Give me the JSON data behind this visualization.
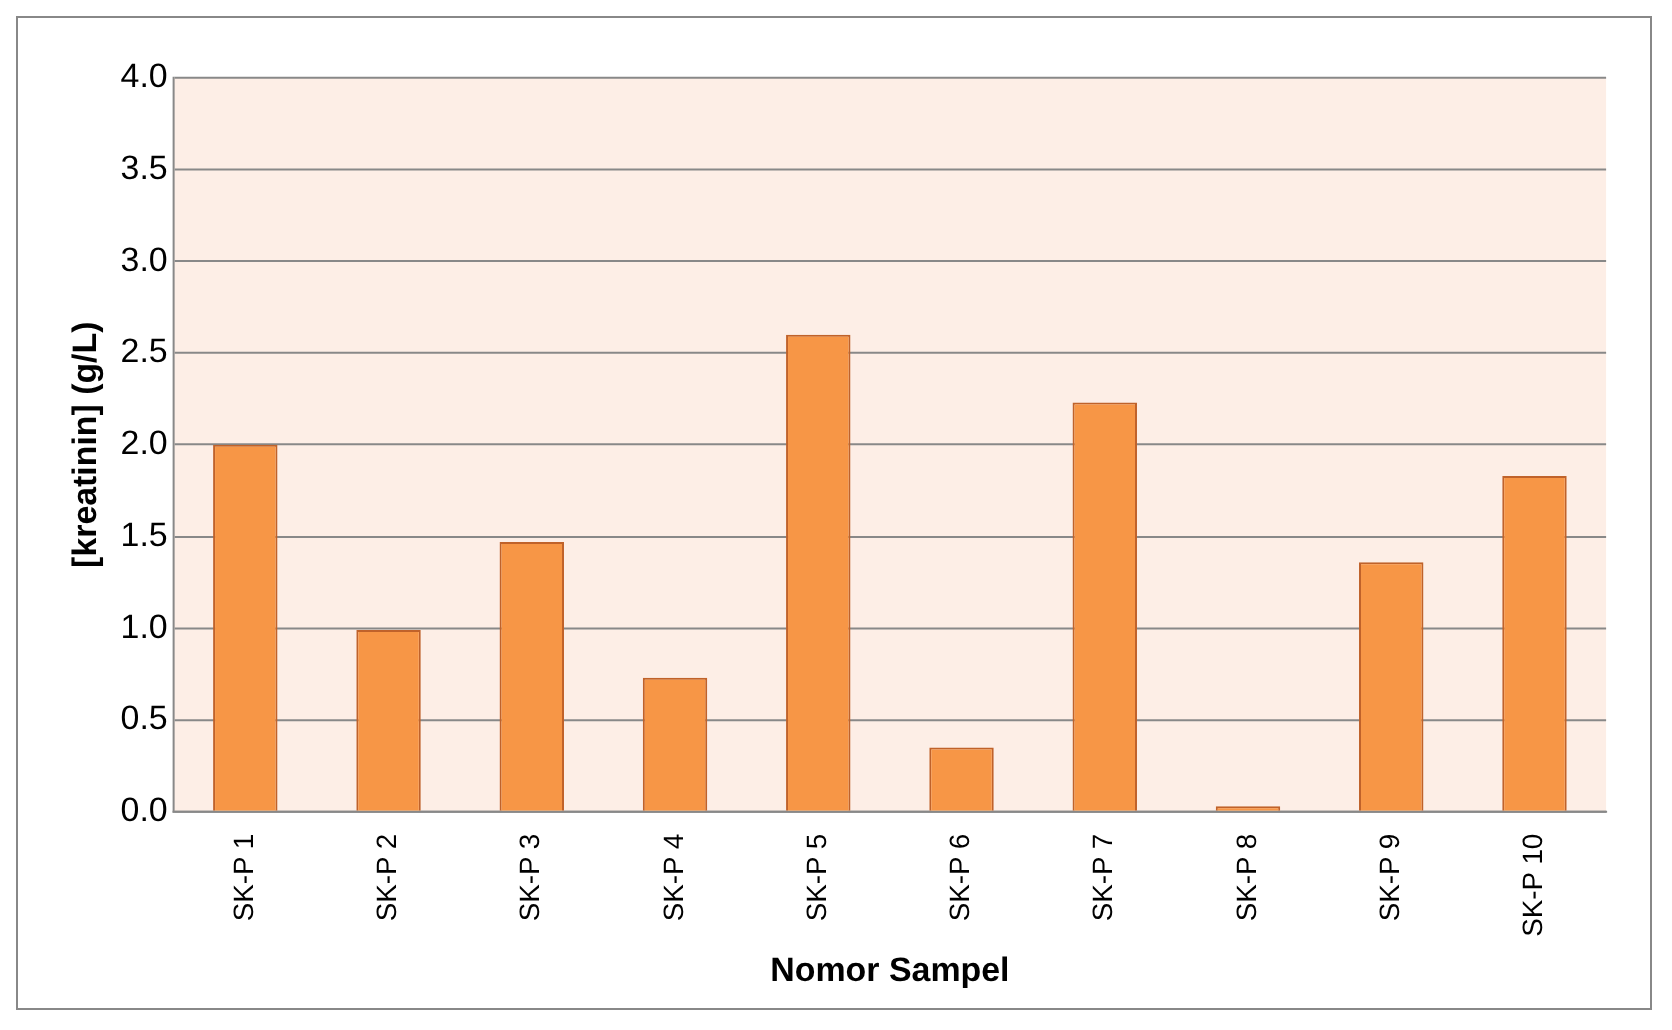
{
  "chart_data": {
    "type": "bar",
    "xlabel": "Nomor Sampel",
    "ylabel": "[kreatinin] (g/L)",
    "categories": [
      "SK-P 1",
      "SK-P 2",
      "SK-P 3",
      "SK-P 4",
      "SK-P 5",
      "SK-P 6",
      "SK-P 7",
      "SK-P 8",
      "SK-P 9",
      "SK-P 10"
    ],
    "values": [
      2.0,
      0.99,
      1.47,
      0.73,
      2.6,
      0.35,
      2.23,
      0.03,
      1.36,
      1.83
    ],
    "color": "#f79646",
    "ylim": [
      0,
      4
    ],
    "yticks": [
      {
        "value": 0,
        "label": "0.0"
      },
      {
        "value": 0.5,
        "label": "0.5"
      },
      {
        "value": 1,
        "label": "1.0"
      },
      {
        "value": 1.5,
        "label": "1.5"
      },
      {
        "value": 2,
        "label": "2.0"
      },
      {
        "value": 2.5,
        "label": "2.5"
      },
      {
        "value": 3,
        "label": "3.0"
      },
      {
        "value": 3.5,
        "label": "3.5"
      },
      {
        "value": 4,
        "label": "4.0"
      }
    ],
    "grid": "y",
    "legend": false
  }
}
